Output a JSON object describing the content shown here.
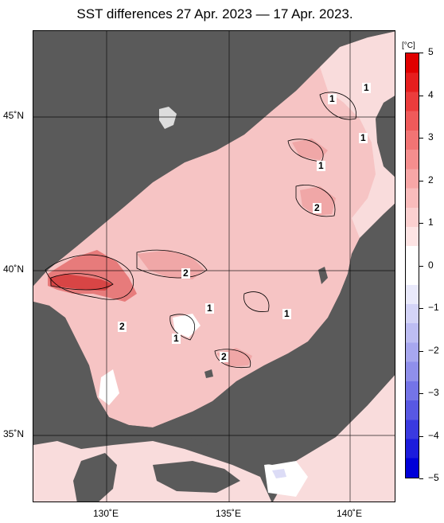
{
  "title": "SST differences 27 Apr. 2023 — 17 Apr. 2023.",
  "unit": "[°C]",
  "lat_labels": [
    "45˚N",
    "40˚N",
    "35˚N"
  ],
  "lon_labels": [
    "130˚E",
    "135˚E",
    "140˚E"
  ],
  "colorbar_ticks": [
    "5",
    "4",
    "3",
    "2",
    "1",
    "0",
    "−1",
    "−2",
    "−3",
    "−4",
    "−5"
  ],
  "contour_labels": [
    "1",
    "1",
    "1",
    "1",
    "2",
    "2",
    "1",
    "2",
    "1",
    "1",
    "2"
  ],
  "colors": {
    "land": "#5a5a5a",
    "sea_pale": "#f9dcdc",
    "sea_light": "#f6c4c4",
    "sea_mid": "#f0a7a7",
    "sea_strong": "#e77b7b",
    "sea_max": "#d84545",
    "sea_neutral": "#ffffff",
    "sea_cool": "#dcdcf6"
  },
  "colorbar_colors": [
    "#e00000",
    "#e61e1e",
    "#eb3c3c",
    "#ef5a5a",
    "#f27474",
    "#f58e8e",
    "#f7a6a6",
    "#f9bcbc",
    "#fbd0d0",
    "#fde4e4",
    "#ffffff",
    "#ffffff",
    "#e9e9fb",
    "#d3d3f7",
    "#bdbdf3",
    "#a7a7ef",
    "#8f8feb",
    "#7474e7",
    "#5858e3",
    "#3a3ae0",
    "#1c1cdc",
    "#0000d8"
  ]
}
